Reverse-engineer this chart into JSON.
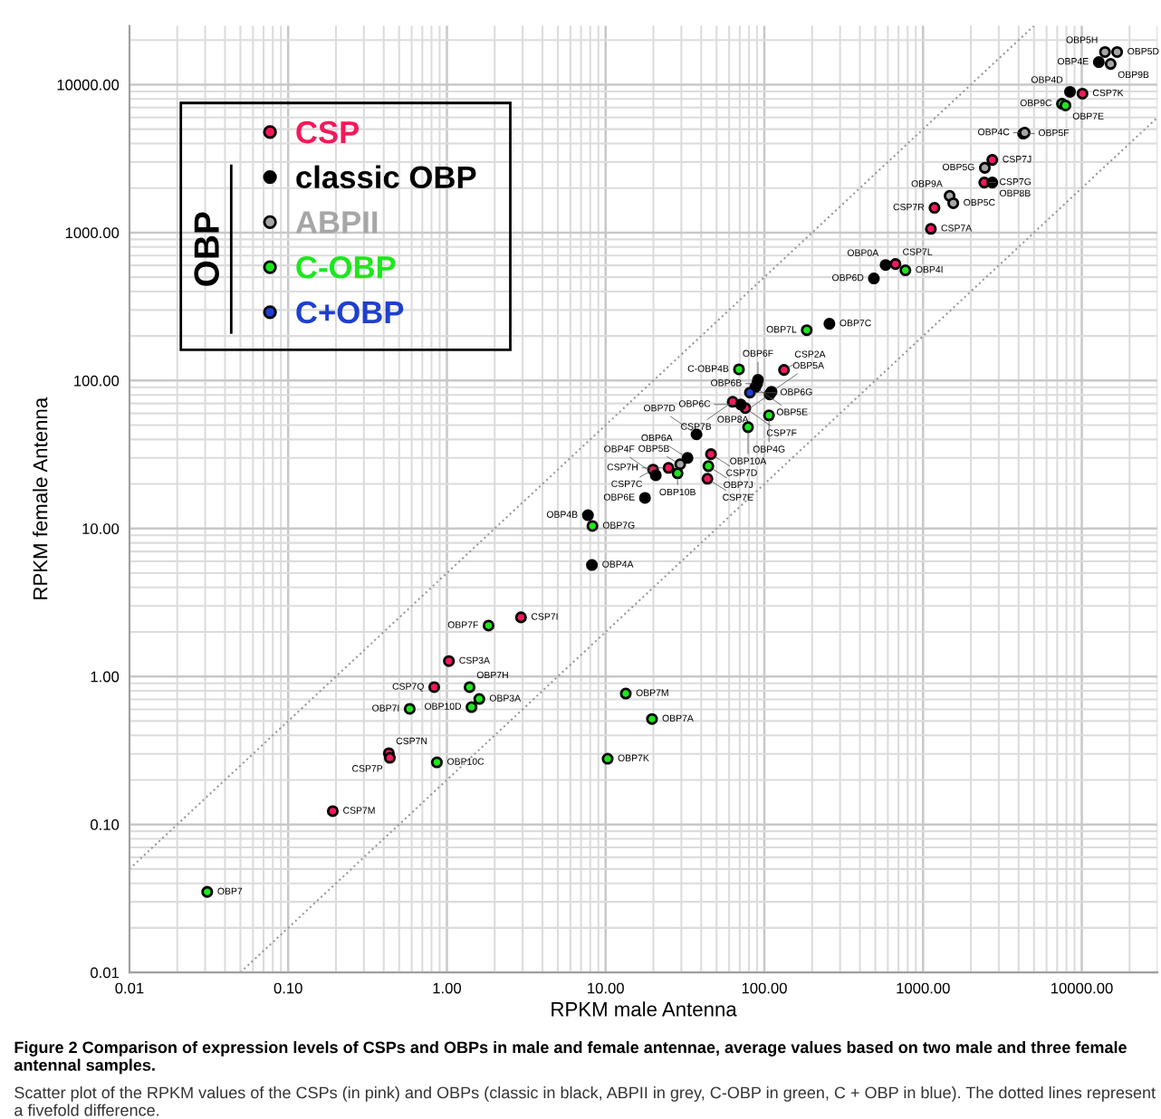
{
  "chart_data": {
    "type": "scatter",
    "xlabel": "RPKM male Antenna",
    "ylabel": "RPKM female Antenna",
    "log": "xy",
    "grid": true,
    "legend": "top left",
    "marker": "circle",
    "xlim": [
      0.01,
      30000
    ],
    "ylim": [
      0.01,
      25000
    ],
    "xticks": [
      {
        "value": 0.01,
        "label": "0.01"
      },
      {
        "value": 0.1,
        "label": "0.10"
      },
      {
        "value": 1,
        "label": "1.00"
      },
      {
        "value": 10,
        "label": "10.00"
      },
      {
        "value": 100,
        "label": "100.00"
      },
      {
        "value": 1000,
        "label": "1000.00"
      },
      {
        "value": 10000,
        "label": "10000.00"
      }
    ],
    "yticks": [
      {
        "value": 0.01,
        "label": "0.01"
      },
      {
        "value": 0.1,
        "label": "0.10"
      },
      {
        "value": 1,
        "label": "1.00"
      },
      {
        "value": 10,
        "label": "10.00"
      },
      {
        "value": 100,
        "label": "100.00"
      },
      {
        "value": 1000,
        "label": "1000.00"
      },
      {
        "value": 10000,
        "label": "10000.00"
      }
    ],
    "series": [
      {
        "name": "CSP",
        "color": "#f5195a",
        "x": [
          10100,
          2730,
          2430,
          1180,
          1120,
          670,
          133,
          63.2,
          75.9,
          46.1,
          24.9,
          19.9,
          43.8,
          2.93,
          1.03,
          0.832,
          0.431,
          0.437,
          0.191
        ],
        "values": [
          8690,
          3100,
          2180,
          1470,
          1060,
          613,
          118,
          71.9,
          65.2,
          31.8,
          25.7,
          25.0,
          21.7,
          2.51,
          1.27,
          0.847,
          0.303,
          0.282,
          0.123
        ],
        "value_labels": [
          "CSP7K",
          "CSP7J",
          "CSP7G",
          "CSP7R",
          "CSP7A",
          "CSP7L",
          "CSP2A",
          "CSP7B",
          "CSP7F",
          "CSP7D",
          "CSP7H",
          "CSP7C",
          "CSP7E",
          "CSP7I",
          "CSP3A",
          "CSP7Q",
          "CSP7N",
          "CSP7P",
          "CSP7M"
        ]
      },
      {
        "name": "classic OBP",
        "color": "#000000",
        "x": [
          12800,
          8430,
          2730,
          581,
          490,
          257,
          91.2,
          90.0,
          87.7,
          111,
          108,
          71.1,
          37.4,
          32.8,
          20.7,
          17.7,
          7.74,
          8.2
        ],
        "values": [
          14200,
          8930,
          2180,
          604,
          490,
          242,
          101,
          95.3,
          90.1,
          84.0,
          80.5,
          68.9,
          43.3,
          30.0,
          22.9,
          16.1,
          12.3,
          5.67
        ],
        "value_labels": [
          "OBP4E",
          "OBP4D",
          "OBP8B",
          "OBP0A",
          "OBP6D",
          "OBP7C",
          "OBP6F",
          "OBP6B",
          "OBP5E",
          "OBP5A",
          "OBP8A",
          "OBP6C",
          "OBP7D",
          "OBP6A",
          "OBP4F",
          "OBP6E",
          "OBP4B",
          "OBP4A"
        ]
      },
      {
        "name": "ABPII",
        "color": "#a6a6a6",
        "x": [
          14000,
          16700,
          15200,
          4270,
          4370,
          2450,
          1470,
          1550,
          29.5
        ],
        "values": [
          16600,
          16600,
          13800,
          4670,
          4730,
          2740,
          1770,
          1580,
          27.2
        ],
        "value_labels": [
          "OBP5H",
          "OBP5D",
          "OBP9B",
          "OBP5F",
          "OBP4C",
          "OBP5G",
          "OBP9A",
          "OBP5C",
          "OBP5B"
        ]
      },
      {
        "name": "C-OBP",
        "color": "#1ee61e",
        "x": [
          7500,
          7890,
          774,
          185,
          69.2,
          107,
          78.9,
          28.4,
          44.4,
          8.26,
          1.83,
          1.39,
          1.6,
          1.43,
          0.583,
          13.4,
          19.6,
          0.865,
          10.3,
          0.0309
        ],
        "values": [
          7430,
          7230,
          556,
          219,
          119,
          58.2,
          48.4,
          23.6,
          26.4,
          10.4,
          2.21,
          0.847,
          0.705,
          0.621,
          0.604,
          0.767,
          0.516,
          0.263,
          0.278,
          0.035
        ],
        "value_labels": [
          "OBP9C",
          "OBP7E",
          "OBP4I",
          "OBP7L",
          "C-OBP4B",
          "OBP4G",
          "OBP10A",
          "OBP10B",
          "OBP7J",
          "OBP7G",
          "OBP7F",
          "OBP7H",
          "OBP3A",
          "OBP10D",
          "OBP7I",
          "OBP7M",
          "OBP7A",
          "OBP10C",
          "OBP7K",
          "OBP7"
        ]
      },
      {
        "name": "C+OBP",
        "color": "#1f3fd0",
        "x": [
          81.1
        ],
        "values": [
          82.8
        ],
        "value_labels": [
          "OBP6G"
        ]
      },
      {
        "type": "line",
        "color": "#999999",
        "line_style": "dotted",
        "marker": "none",
        "x": [
          0.01,
          5000
        ],
        "values": [
          0.05,
          25000
        ]
      },
      {
        "type": "line",
        "color": "#999999",
        "line_style": "dotted",
        "marker": "none",
        "x": [
          0.05,
          30000
        ],
        "values": [
          0.01,
          6000
        ]
      }
    ],
    "annotations": [
      "OBP",
      "Figure 2 Comparison of expression levels of CSPs and OBPs in male and female antennae, average values based on two male and three female antennal samples.",
      "Scatter plot of the RPKM values of the CSPs (in pink) and OBPs (classic in black, ABPII in grey, C-OBP in green, C + OBP in blue). The dotted lines represent a fivefold difference."
    ]
  }
}
